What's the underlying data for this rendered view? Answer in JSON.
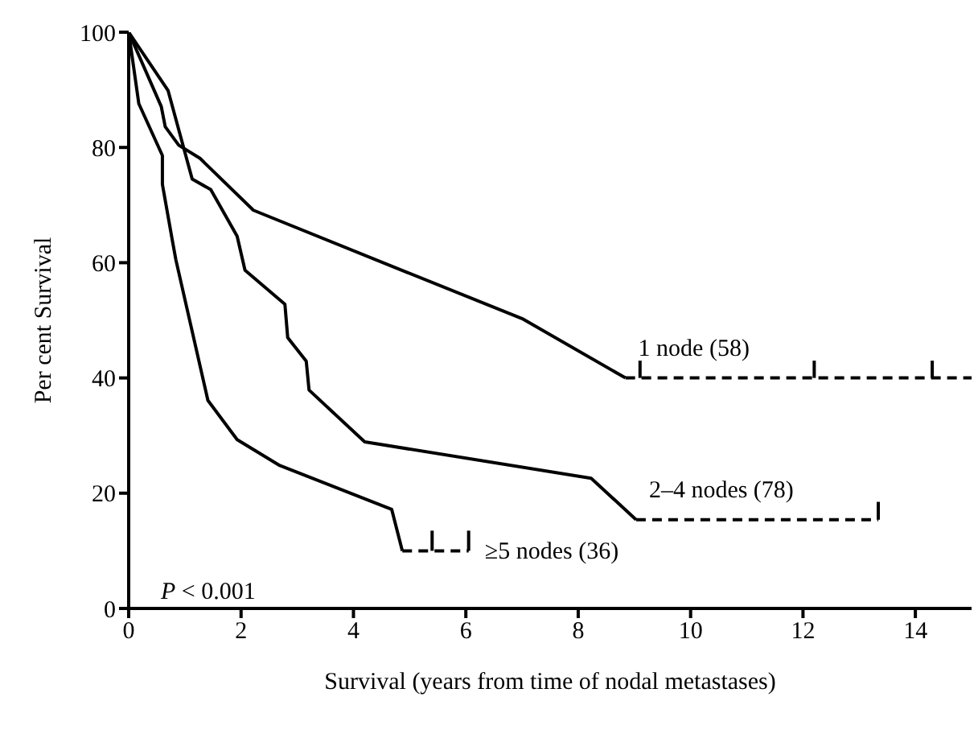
{
  "chart_data": {
    "type": "line",
    "xlabel": "Survival (years from time of nodal metastases)",
    "ylabel": "Per cent Survival",
    "xlim": [
      0,
      15
    ],
    "xticks": [
      0,
      2,
      4,
      6,
      8,
      10,
      12,
      14
    ],
    "ylim": [
      0,
      100
    ],
    "yticks": [
      0,
      20,
      40,
      60,
      80,
      100
    ],
    "grid": false,
    "marker": "none",
    "series": [
      {
        "color": "#000000",
        "line_style": "solid",
        "x": [
          0,
          0.58,
          0.65,
          0.89,
          1.27,
          2.22,
          4.96,
          7.0,
          8.84
        ],
        "values": [
          100,
          87.1,
          83.6,
          80.4,
          78.1,
          69.1,
          58.3,
          50.3,
          40
        ]
      },
      {
        "name": "1 node (58)",
        "color": "#000000",
        "line_style": "dashed",
        "x": [
          8.84,
          15
        ],
        "values": [
          40,
          40
        ]
      },
      {
        "color": "#000000",
        "line_style": "solid",
        "x": [
          9.1,
          9.1
        ],
        "values": [
          40,
          43
        ]
      },
      {
        "color": "#000000",
        "line_style": "solid",
        "x": [
          12.2,
          12.2
        ],
        "values": [
          40,
          43
        ]
      },
      {
        "color": "#000000",
        "line_style": "solid",
        "x": [
          14.3,
          14.3
        ],
        "values": [
          40,
          43
        ]
      },
      {
        "color": "#000000",
        "line_style": "solid",
        "x": [
          0,
          0.7,
          1.13,
          1.46,
          1.93,
          2.07,
          2.78,
          2.83,
          3.16,
          3.21,
          4.2,
          8.23,
          9.03
        ],
        "values": [
          100,
          89.9,
          74.5,
          72.7,
          64.6,
          58.7,
          52.8,
          47.0,
          42.9,
          37.9,
          28.9,
          22.6,
          15.4
        ]
      },
      {
        "name": "2–4 nodes (78)",
        "color": "#000000",
        "line_style": "dashed",
        "x": [
          9.03,
          13.34
        ],
        "values": [
          15.4,
          15.4
        ]
      },
      {
        "color": "#000000",
        "line_style": "solid",
        "x": [
          13.34,
          13.34
        ],
        "values": [
          15.4,
          18.5
        ]
      },
      {
        "color": "#000000",
        "line_style": "solid",
        "x": [
          0,
          0.18,
          0.6,
          0.6,
          0.78,
          0.84,
          1.41,
          1.93,
          2.69,
          4.68,
          4.87
        ],
        "values": [
          100,
          87.6,
          78.6,
          73.6,
          63.7,
          60.5,
          36.1,
          29.3,
          24.8,
          17.2,
          10
        ]
      },
      {
        "color": "#000000",
        "line_style": "dashed",
        "x": [
          4.87,
          6.05
        ],
        "values": [
          10,
          10
        ]
      },
      {
        "color": "#000000",
        "line_style": "solid",
        "x": [
          5.4,
          5.4
        ],
        "values": [
          10,
          13.5
        ]
      },
      {
        "name": "≥5 nodes (36)",
        "color": "#000000",
        "line_style": "solid",
        "x": [
          6.05,
          6.05
        ],
        "values": [
          10,
          13.5
        ]
      }
    ],
    "annotations": [
      "P < 0.001"
    ]
  }
}
